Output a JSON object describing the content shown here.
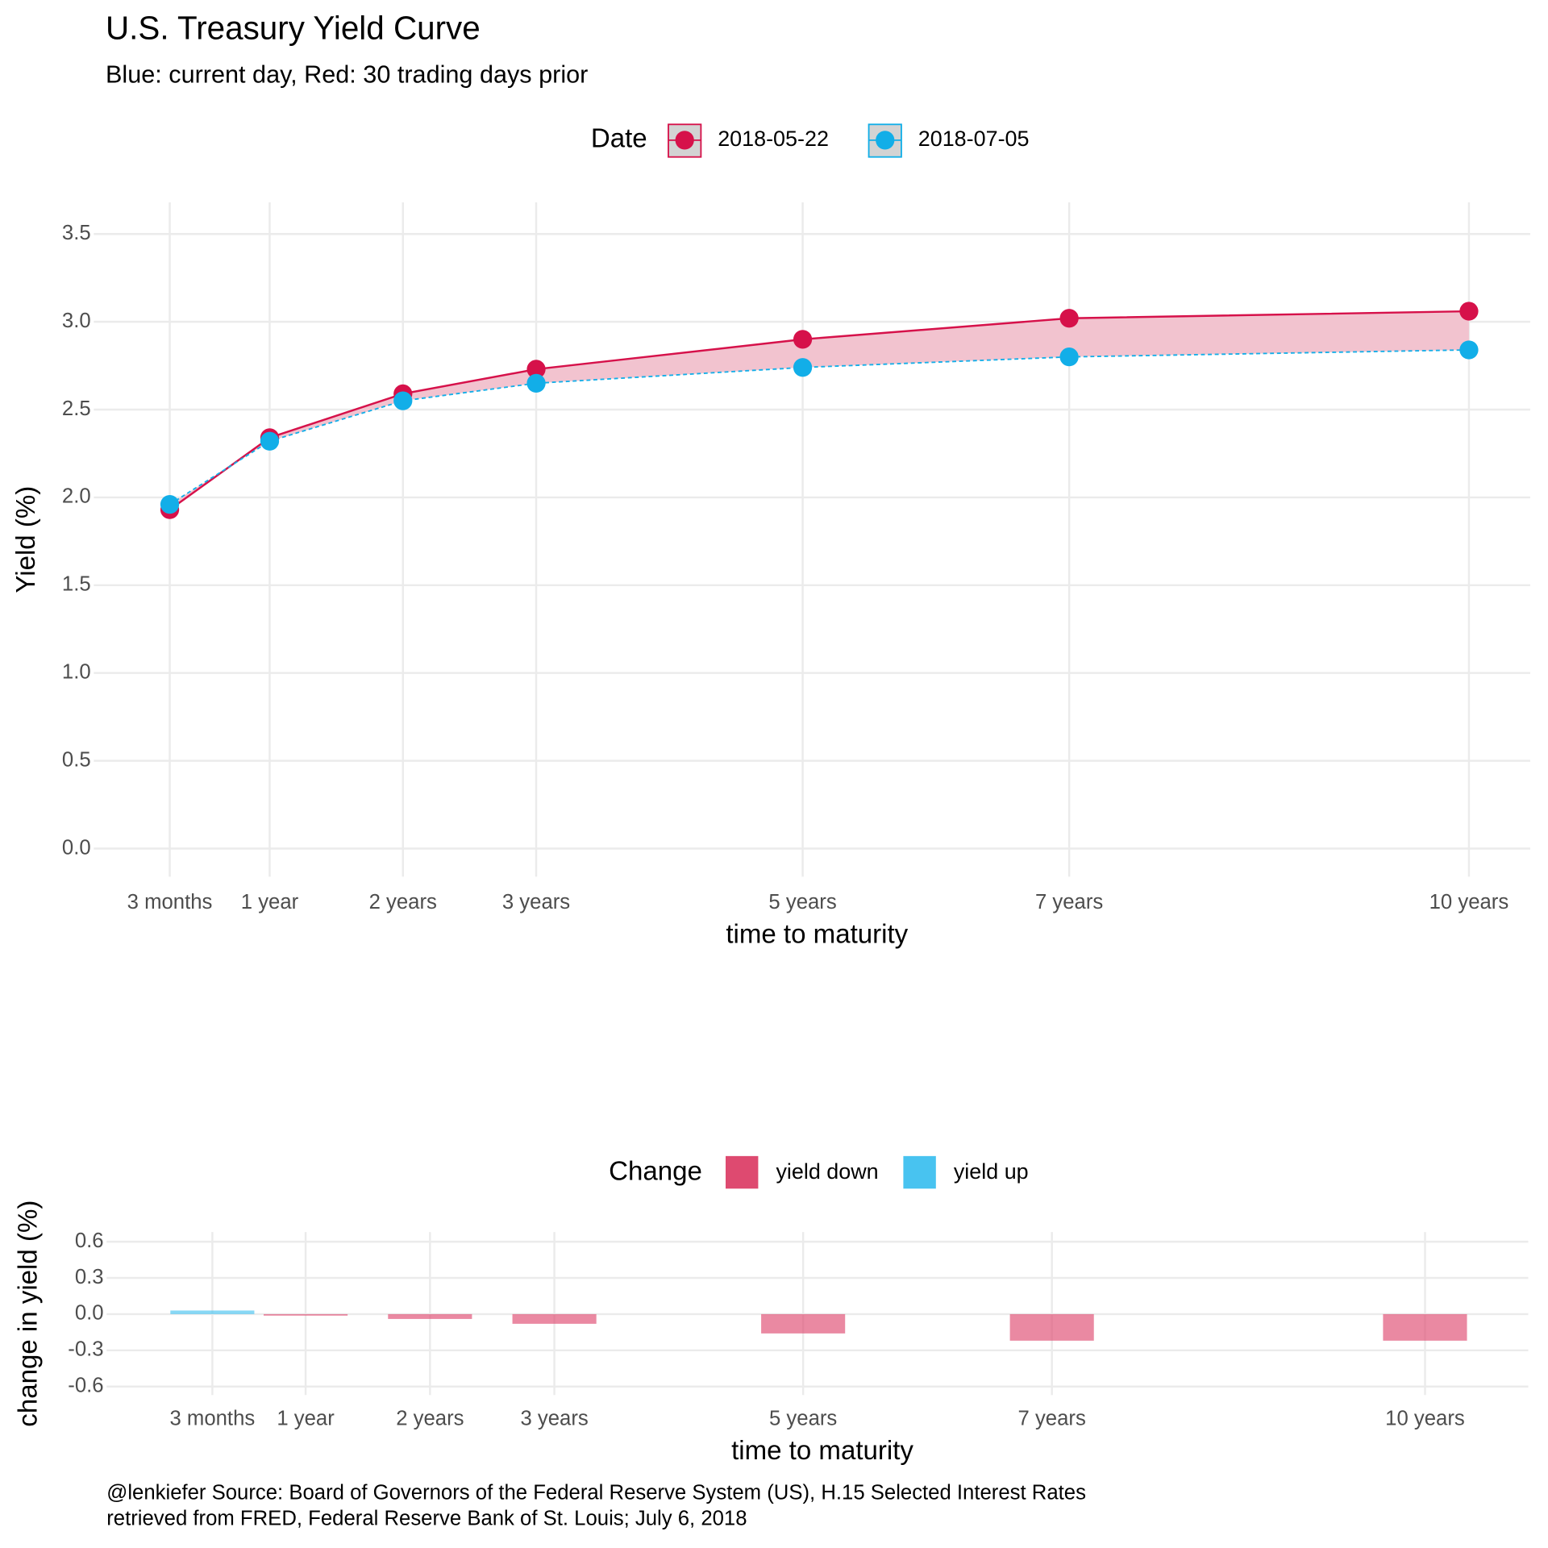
{
  "chart_data": [
    {
      "type": "line",
      "title": "U.S. Treasury Yield Curve",
      "subtitle": "Blue: current day, Red: 30 trading days prior",
      "x_label": "time to maturity",
      "y_label": "Yield (%)",
      "legend_title": "Date",
      "legend_position": "top",
      "grid": true,
      "ribbon_color": "#f2c3cf",
      "x": [
        0.25,
        1,
        2,
        3,
        5,
        7,
        10
      ],
      "xlim": [
        -0.32,
        10.46
      ],
      "xticks": [
        {
          "value": 0.25,
          "label": "3 months"
        },
        {
          "value": 1,
          "label": "1 year"
        },
        {
          "value": 2,
          "label": "2 years"
        },
        {
          "value": 3,
          "label": "3 years"
        },
        {
          "value": 5,
          "label": "5 years"
        },
        {
          "value": 7,
          "label": "7 years"
        },
        {
          "value": 10,
          "label": "10 years"
        }
      ],
      "ylim": [
        -0.16,
        3.68
      ],
      "yticks": [
        {
          "value": 0,
          "label": "0.0"
        },
        0.5,
        {
          "value": 1,
          "label": "1.0"
        },
        1.5,
        {
          "value": 2,
          "label": "2.0"
        },
        2.5,
        {
          "value": 3,
          "label": "3.0"
        },
        3.5
      ],
      "series": [
        {
          "name": "2018-05-22",
          "color": "#d6114a",
          "linestyle": "solid",
          "values": [
            1.93,
            2.34,
            2.59,
            2.73,
            2.9,
            3.02,
            3.06
          ]
        },
        {
          "name": "2018-07-05",
          "color": "#12aee8",
          "linestyle": "dashed",
          "values": [
            1.96,
            2.32,
            2.55,
            2.65,
            2.74,
            2.8,
            2.84
          ]
        }
      ]
    },
    {
      "type": "bar",
      "x_label": "time to maturity",
      "y_label": "change in yield (%)",
      "legend_title": "Change",
      "legend_position": "top",
      "grid": true,
      "caption": [
        "@lenkiefer Source: Board of Governors of the Federal Reserve System (US), H.15 Selected Interest Rates",
        "retrieved from FRED, Federal Reserve Bank of St. Louis; July 6, 2018"
      ],
      "x": [
        0.25,
        1,
        2,
        3,
        5,
        7,
        10
      ],
      "xlim": [
        -0.6,
        10.83
      ],
      "xticks": [
        {
          "value": 0.25,
          "label": "3 months"
        },
        {
          "value": 1,
          "label": "1 year"
        },
        {
          "value": 2,
          "label": "2 years"
        },
        {
          "value": 3,
          "label": "3 years"
        },
        {
          "value": 5,
          "label": "5 years"
        },
        {
          "value": 7,
          "label": "7 years"
        },
        {
          "value": 10,
          "label": "10 years"
        }
      ],
      "ylim": [
        -0.67,
        0.68
      ],
      "yticks": [
        -0.6,
        -0.3,
        {
          "value": 0,
          "label": "0.0"
        },
        0.3,
        0.6
      ],
      "values": [
        0.03,
        -0.01,
        -0.04,
        -0.08,
        -0.16,
        -0.22,
        -0.22
      ],
      "series": [
        {
          "name": "yield down",
          "color": "#de4a70"
        },
        {
          "name": "yield up",
          "color": "#48c3f0"
        }
      ]
    }
  ]
}
